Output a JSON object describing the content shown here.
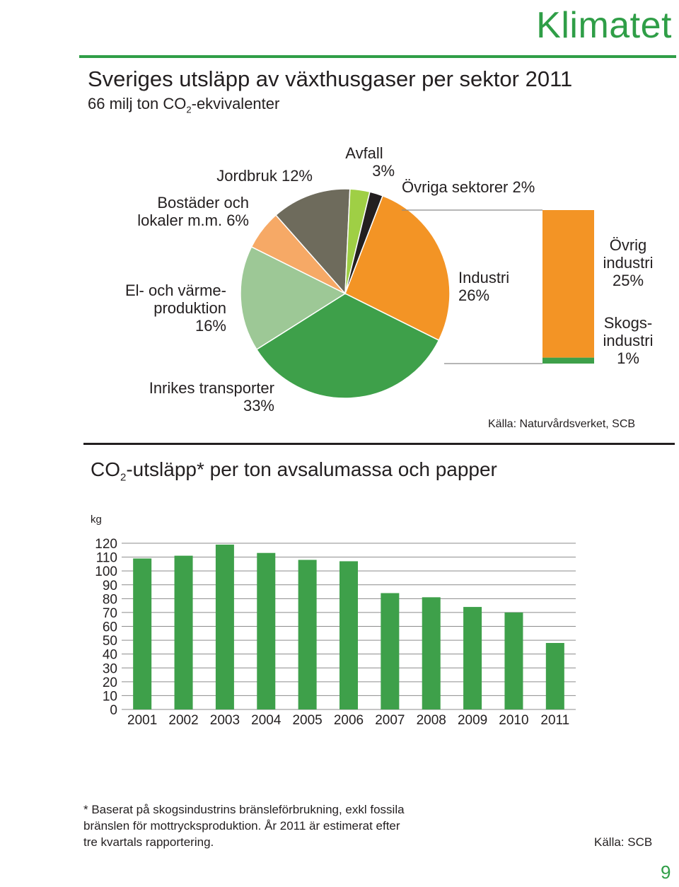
{
  "header": {
    "title": "Klimatet",
    "page_number": "9",
    "accent_color": "#2f9e47"
  },
  "pie_section": {
    "title": "Sveriges utsläpp av växthusgaser per sektor 2011",
    "subtitle_pre": "66 milj ton CO",
    "subtitle_sub": "2",
    "subtitle_post": "-ekvivalenter",
    "labels": {
      "jordbruk": "Jordbruk 12%",
      "bostader_line1": "Bostäder och",
      "bostader_line2": "lokaler m.m. 6%",
      "avfall_line1": "Avfall",
      "avfall_line2": "3%",
      "ovriga": "Övriga sektorer 2%",
      "el_line1": "El- och värme-",
      "el_line2": "produktion",
      "el_line3": "16%",
      "transport_line1": "Inrikes transporter",
      "transport_line2": "33%",
      "industri_line1": "Industri",
      "industri_line2": "26%",
      "ovrig_ind_line1": "Övrig",
      "ovrig_ind_line2": "industri",
      "ovrig_ind_line3": "25%",
      "skogs_line1": "Skogs-",
      "skogs_line2": "industri",
      "skogs_line3": "1%"
    },
    "source": "Källa: Naturvårdsverket, SCB"
  },
  "bar_section": {
    "title_pre": "CO",
    "title_sub": "2",
    "title_post": "-utsläpp* per ton avsalumassa och papper",
    "footnote": "* Baserat på skogsindustrins bränsleförbrukning, exkl fossila\nbränslen för mottrycksproduktion. År 2011 är estimerat efter\ntre kvartals rapportering.",
    "source": "Källa: SCB"
  },
  "chart_data": [
    {
      "type": "pie",
      "title": "Sveriges utsläpp av växthusgaser per sektor 2011",
      "subtitle": "66 milj ton CO2-ekvivalenter",
      "slices": [
        {
          "label": "Industri",
          "value": 26,
          "color": "#f39425"
        },
        {
          "label": "Inrikes transporter",
          "value": 33,
          "color": "#3ea04a"
        },
        {
          "label": "El- och värmeproduktion",
          "value": 16,
          "color": "#9dc896"
        },
        {
          "label": "Bostäder och lokaler m.m.",
          "value": 6,
          "color": "#f6a966"
        },
        {
          "label": "Jordbruk",
          "value": 12,
          "color": "#6e6b5c"
        },
        {
          "label": "Avfall",
          "value": 3,
          "color": "#9fcf45"
        },
        {
          "label": "Övriga sektorer",
          "value": 2,
          "color": "#231f20"
        }
      ],
      "industri_breakdown": [
        {
          "label": "Övrig industri",
          "value": 25,
          "color": "#f39425"
        },
        {
          "label": "Skogsindustri",
          "value": 1,
          "color": "#3ea04a"
        }
      ]
    },
    {
      "type": "bar",
      "title": "CO2-utsläpp* per ton avsalumassa och papper",
      "ylabel": "kg",
      "ylim": [
        0,
        120
      ],
      "yticks": [
        0,
        10,
        20,
        30,
        40,
        50,
        60,
        70,
        80,
        90,
        100,
        110,
        120
      ],
      "grid": true,
      "categories": [
        "2001",
        "2002",
        "2003",
        "2004",
        "2005",
        "2006",
        "2007",
        "2008",
        "2009",
        "2010",
        "2011"
      ],
      "values": [
        109,
        111,
        119,
        113,
        108,
        107,
        84,
        81,
        74,
        70,
        48
      ],
      "color": "#3ea04a"
    }
  ]
}
